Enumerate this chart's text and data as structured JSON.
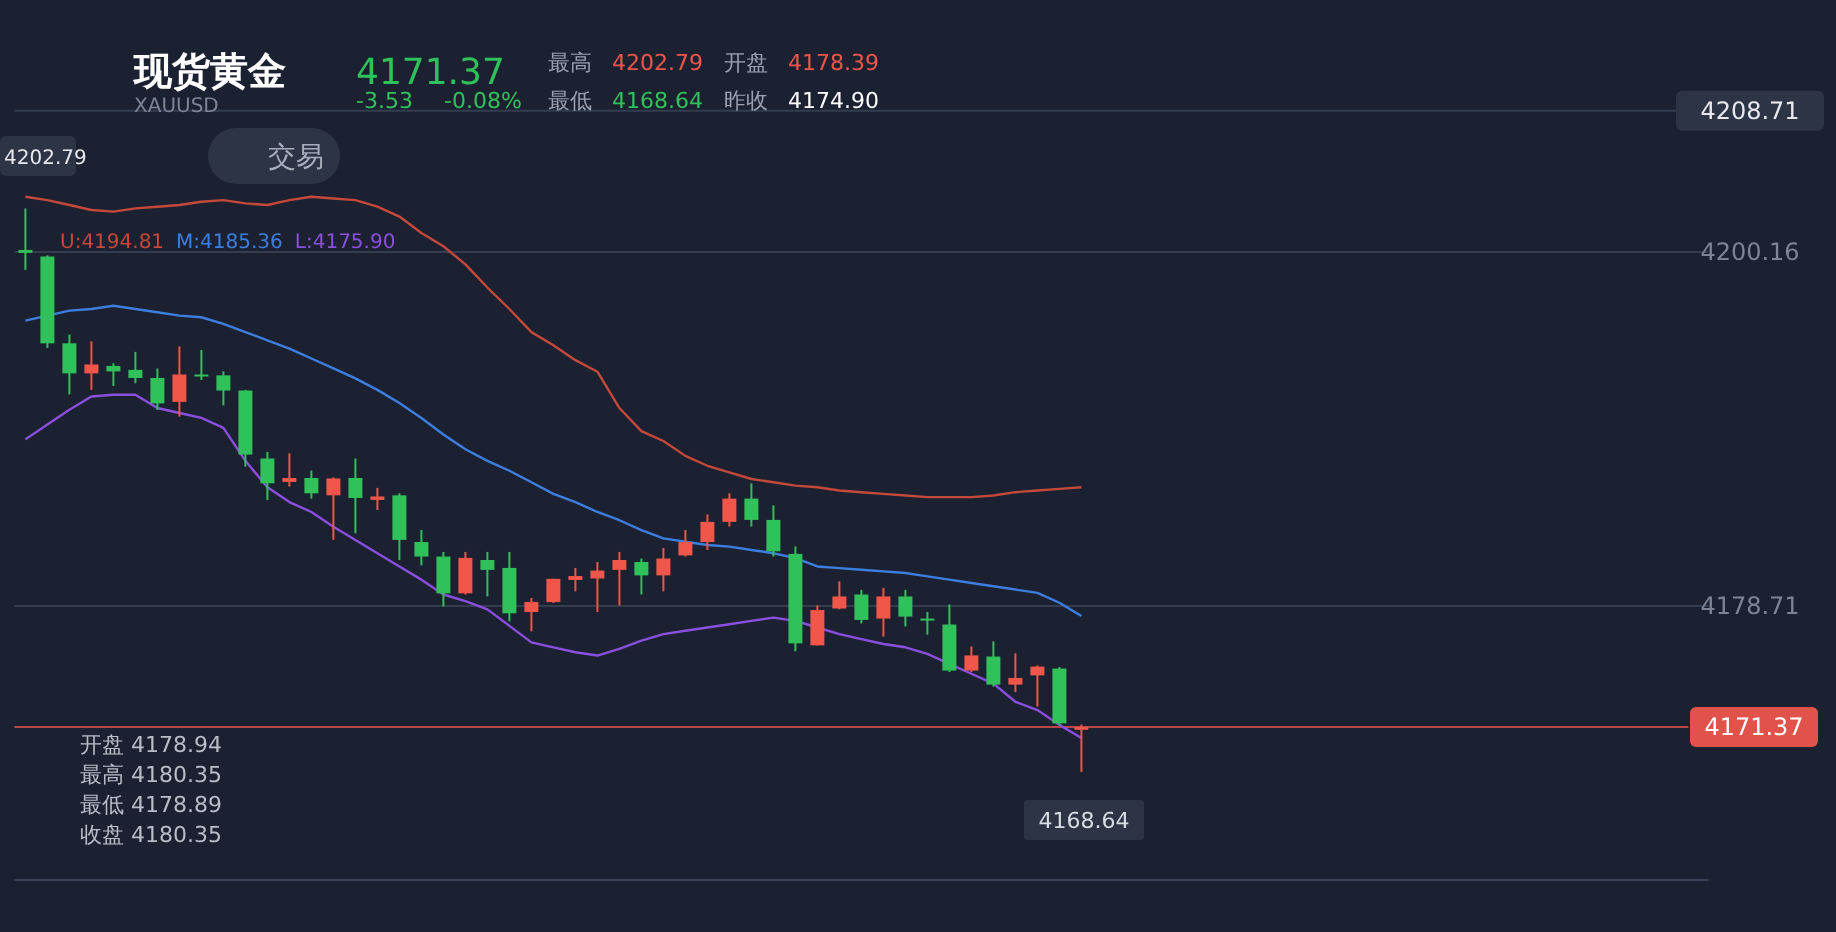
{
  "chart_data": {
    "type": "candlestick",
    "title": "现货黄金",
    "subtitle": "XAUUSD",
    "categories": [
      null,
      null,
      null,
      null,
      null,
      null,
      null,
      null,
      null,
      null,
      null,
      null,
      null,
      null,
      null,
      null,
      null,
      null,
      null,
      null,
      null,
      null,
      null,
      null,
      null,
      null,
      null,
      null,
      null,
      null,
      null,
      null,
      null,
      null,
      null,
      null,
      null,
      null,
      null,
      null,
      null,
      null,
      null,
      null,
      null,
      null,
      null,
      null,
      null,
      null,
      null,
      null,
      null,
      null,
      null,
      null,
      null,
      null,
      null,
      null,
      null,
      null,
      null,
      null,
      null,
      null,
      null,
      null,
      null,
      null,
      null,
      null,
      null,
      null,
      null,
      null,
      null
    ],
    "ohlc": [
      [
        4200.28,
        4202.79,
        4199.07,
        4200.1
      ],
      [
        4199.88,
        4199.95,
        4194.34,
        4194.62
      ],
      [
        4194.62,
        4195.15,
        4191.52,
        4192.8
      ],
      [
        4192.8,
        4194.74,
        4191.8,
        4193.34
      ],
      [
        4193.25,
        4193.41,
        4192.04,
        4192.92
      ],
      [
        4193.01,
        4194.1,
        4192.2,
        4192.52
      ],
      [
        4192.52,
        4193.09,
        4190.58,
        4190.98
      ],
      [
        4191.07,
        4194.43,
        4190.18,
        4192.73
      ],
      [
        4192.73,
        4194.22,
        4192.4,
        4192.61
      ],
      [
        4192.68,
        4192.92,
        4190.86,
        4191.76
      ],
      [
        4191.76,
        4191.8,
        4187.15,
        4187.88
      ],
      [
        4187.64,
        4188.04,
        4185.13,
        4186.14
      ],
      [
        4186.22,
        4187.95,
        4185.94,
        4186.46
      ],
      [
        4186.46,
        4186.91,
        4185.21,
        4185.53
      ],
      [
        4185.41,
        4186.5,
        4182.71,
        4186.43
      ],
      [
        4186.46,
        4187.64,
        4183.11,
        4185.25
      ],
      [
        4185.13,
        4185.86,
        4184.52,
        4185.34
      ],
      [
        4185.41,
        4185.53,
        4181.49,
        4182.71
      ],
      [
        4182.58,
        4183.31,
        4181.17,
        4181.7
      ],
      [
        4181.7,
        4181.98,
        4178.67,
        4179.47
      ],
      [
        4179.47,
        4181.98,
        4179.4,
        4181.62
      ],
      [
        4181.49,
        4181.98,
        4179.28,
        4180.89
      ],
      [
        4181.01,
        4181.98,
        4177.77,
        4178.26
      ],
      [
        4178.34,
        4179.19,
        4177.17,
        4178.95
      ],
      [
        4178.94,
        4180.35,
        4178.89,
        4180.35
      ],
      [
        4180.28,
        4181.01,
        4179.59,
        4180.52
      ],
      [
        4180.37,
        4181.37,
        4178.34,
        4180.85
      ],
      [
        4180.89,
        4181.98,
        4178.74,
        4181.49
      ],
      [
        4181.37,
        4181.58,
        4179.4,
        4180.56
      ],
      [
        4180.56,
        4182.22,
        4179.59,
        4181.58
      ],
      [
        4181.77,
        4183.31,
        4181.7,
        4182.58
      ],
      [
        4182.58,
        4184.25,
        4182.1,
        4183.8
      ],
      [
        4183.8,
        4185.53,
        4183.52,
        4185.21
      ],
      [
        4185.21,
        4186.14,
        4183.52,
        4183.92
      ],
      [
        4183.92,
        4184.8,
        4181.7,
        4182.02
      ],
      [
        4181.86,
        4182.31,
        4175.96,
        4176.44
      ],
      [
        4176.32,
        4178.74,
        4176.3,
        4178.46
      ],
      [
        4178.55,
        4180.2,
        4178.5,
        4179.28
      ],
      [
        4179.4,
        4179.68,
        4177.65,
        4177.86
      ],
      [
        4177.94,
        4179.8,
        4176.85,
        4179.28
      ],
      [
        4179.28,
        4179.68,
        4177.46,
        4178.06
      ],
      [
        4177.94,
        4178.34,
        4176.97,
        4177.82
      ],
      [
        4177.58,
        4178.79,
        4174.7,
        4174.79
      ],
      [
        4174.79,
        4176.25,
        4174.7,
        4175.71
      ],
      [
        4175.64,
        4176.56,
        4173.82,
        4173.94
      ],
      [
        4173.94,
        4175.83,
        4173.49,
        4174.34
      ],
      [
        4174.5,
        4175.1,
        4172.61,
        4175.03
      ],
      [
        4174.91,
        4175.0,
        4171.47,
        4171.59
      ],
      [
        4171.2,
        4171.52,
        4168.64,
        4171.37
      ],
      null,
      null,
      null,
      null,
      null,
      null,
      null,
      null,
      null,
      null,
      null,
      null,
      null,
      null,
      null,
      null,
      null,
      null,
      null,
      null,
      null,
      null,
      null,
      null,
      null,
      null,
      null,
      null
    ],
    "colors": [
      "#31c15a",
      "#31c15a",
      "#31c15a",
      "#f0564a",
      "#31c15a",
      "#31c15a",
      "#31c15a",
      "#f0564a",
      "#31c15a",
      "#31c15a",
      "#31c15a",
      "#31c15a",
      "#f0564a",
      "#31c15a",
      "#f0564a",
      "#31c15a",
      "#f0564a",
      "#31c15a",
      "#31c15a",
      "#31c15a",
      "#f0564a",
      "#31c15a",
      "#31c15a",
      "#f0564a",
      "#f0564a",
      "#f0564a",
      "#f0564a",
      "#f0564a",
      "#31c15a",
      "#f0564a",
      "#f0564a",
      "#f0564a",
      "#f0564a",
      "#31c15a",
      "#31c15a",
      "#31c15a",
      "#f0564a",
      "#f0564a",
      "#31c15a",
      "#f0564a",
      "#31c15a",
      "#31c15a",
      "#31c15a",
      "#f0564a",
      "#31c15a",
      "#f0564a",
      "#f0564a",
      "#31c15a",
      "#f0564a",
      null,
      null,
      null,
      null,
      null,
      null,
      null,
      null,
      null,
      null,
      null,
      null,
      null,
      null,
      null,
      null,
      null,
      null,
      null,
      null,
      null,
      null,
      null,
      null,
      null,
      null,
      null,
      null
    ],
    "series": [
      {
        "name": "U:4194.81",
        "type": "line",
        "color": "#c4493a",
        "values": [
          4203.5,
          4203.3,
          4203.0,
          4202.7,
          4202.6,
          4202.8,
          4202.9,
          4203.0,
          4203.2,
          4203.3,
          4203.1,
          4203.0,
          4203.3,
          4203.5,
          4203.4,
          4203.3,
          4202.9,
          4202.3,
          4201.3,
          4200.5,
          4199.4,
          4198.0,
          4196.7,
          4195.3,
          4194.5,
          4193.6,
          4192.9,
          4190.7,
          4189.3,
          4188.7,
          4187.8,
          4187.2,
          4186.8,
          4186.4,
          4186.2,
          4186.0,
          4185.9,
          4185.7,
          4185.6,
          4185.5,
          4185.4,
          4185.3,
          4185.3,
          4185.3,
          4185.4,
          4185.6,
          4185.7,
          4185.8,
          4185.9,
          null,
          null,
          null,
          null,
          null,
          null,
          null,
          null,
          null,
          null,
          null,
          null,
          null,
          null,
          null,
          null,
          null,
          null,
          null,
          null,
          null,
          null,
          null,
          null,
          null,
          null,
          null,
          null
        ]
      },
      {
        "name": "M:4185.36",
        "type": "line",
        "color": "#3d7fe0",
        "values": [
          4196.0,
          4196.3,
          4196.6,
          4196.7,
          4196.9,
          4196.7,
          4196.5,
          4196.3,
          4196.2,
          4195.8,
          4195.3,
          4194.8,
          4194.3,
          4193.7,
          4193.1,
          4192.5,
          4191.8,
          4191.0,
          4190.1,
          4189.1,
          4188.2,
          4187.5,
          4186.9,
          4186.2,
          4185.5,
          4185.0,
          4184.4,
          4183.9,
          4183.3,
          4182.8,
          4182.6,
          4182.4,
          4182.3,
          4182.1,
          4181.9,
          4181.6,
          4181.1,
          4181.0,
          4180.9,
          4180.8,
          4180.7,
          4180.5,
          4180.3,
          4180.1,
          4179.9,
          4179.7,
          4179.5,
          4178.9,
          4178.1,
          null,
          null,
          null,
          null,
          null,
          null,
          null,
          null,
          null,
          null,
          null,
          null,
          null,
          null,
          null,
          null,
          null,
          null,
          null,
          null,
          null,
          null,
          null,
          null,
          null,
          null,
          null,
          null
        ]
      },
      {
        "name": "L:4175.90",
        "type": "line",
        "color": "#8b4fe0",
        "values": [
          4188.8,
          4189.7,
          4190.6,
          4191.4,
          4191.5,
          4191.5,
          4190.7,
          4190.4,
          4190.1,
          4189.5,
          4187.5,
          4185.9,
          4185.0,
          4184.4,
          4183.5,
          4182.7,
          4181.9,
          4181.1,
          4180.3,
          4179.4,
          4179.0,
          4178.5,
          4177.5,
          4176.5,
          4176.2,
          4175.9,
          4175.7,
          4176.1,
          4176.6,
          4177.0,
          4177.2,
          4177.4,
          4177.6,
          4177.8,
          4178.0,
          4177.8,
          4177.4,
          4177.0,
          4176.7,
          4176.4,
          4176.2,
          4175.8,
          4175.2,
          4174.6,
          4174.0,
          4172.9,
          4172.4,
          4171.5,
          4170.7,
          null,
          null,
          null,
          null,
          null,
          null,
          null,
          null,
          null,
          null,
          null,
          null,
          null,
          null,
          null,
          null,
          null,
          null,
          null,
          null,
          null,
          null,
          null,
          null,
          null,
          null,
          null,
          null
        ]
      }
    ],
    "ylim": [
      4162.1,
      4208.71
    ],
    "yticks": [
      4178.71,
      4200.16,
      4208.71
    ],
    "grid": "y",
    "legend": "top left",
    "ref_lines": [
      {
        "axis": "y",
        "value": 4171.37,
        "label": "4171.37",
        "color": "#e0524a"
      }
    ],
    "annotations": [
      "4171.37",
      "-3.53",
      "-0.08%",
      "最高",
      "4202.79",
      "开盘",
      "4178.39",
      "最低",
      "4168.64",
      "昨收",
      "4174.90",
      "交易",
      "开盘 4178.94",
      "最高 4180.35",
      "最低 4178.89",
      "收盘 4180.35",
      "4168.64",
      "4202.79"
    ]
  }
}
